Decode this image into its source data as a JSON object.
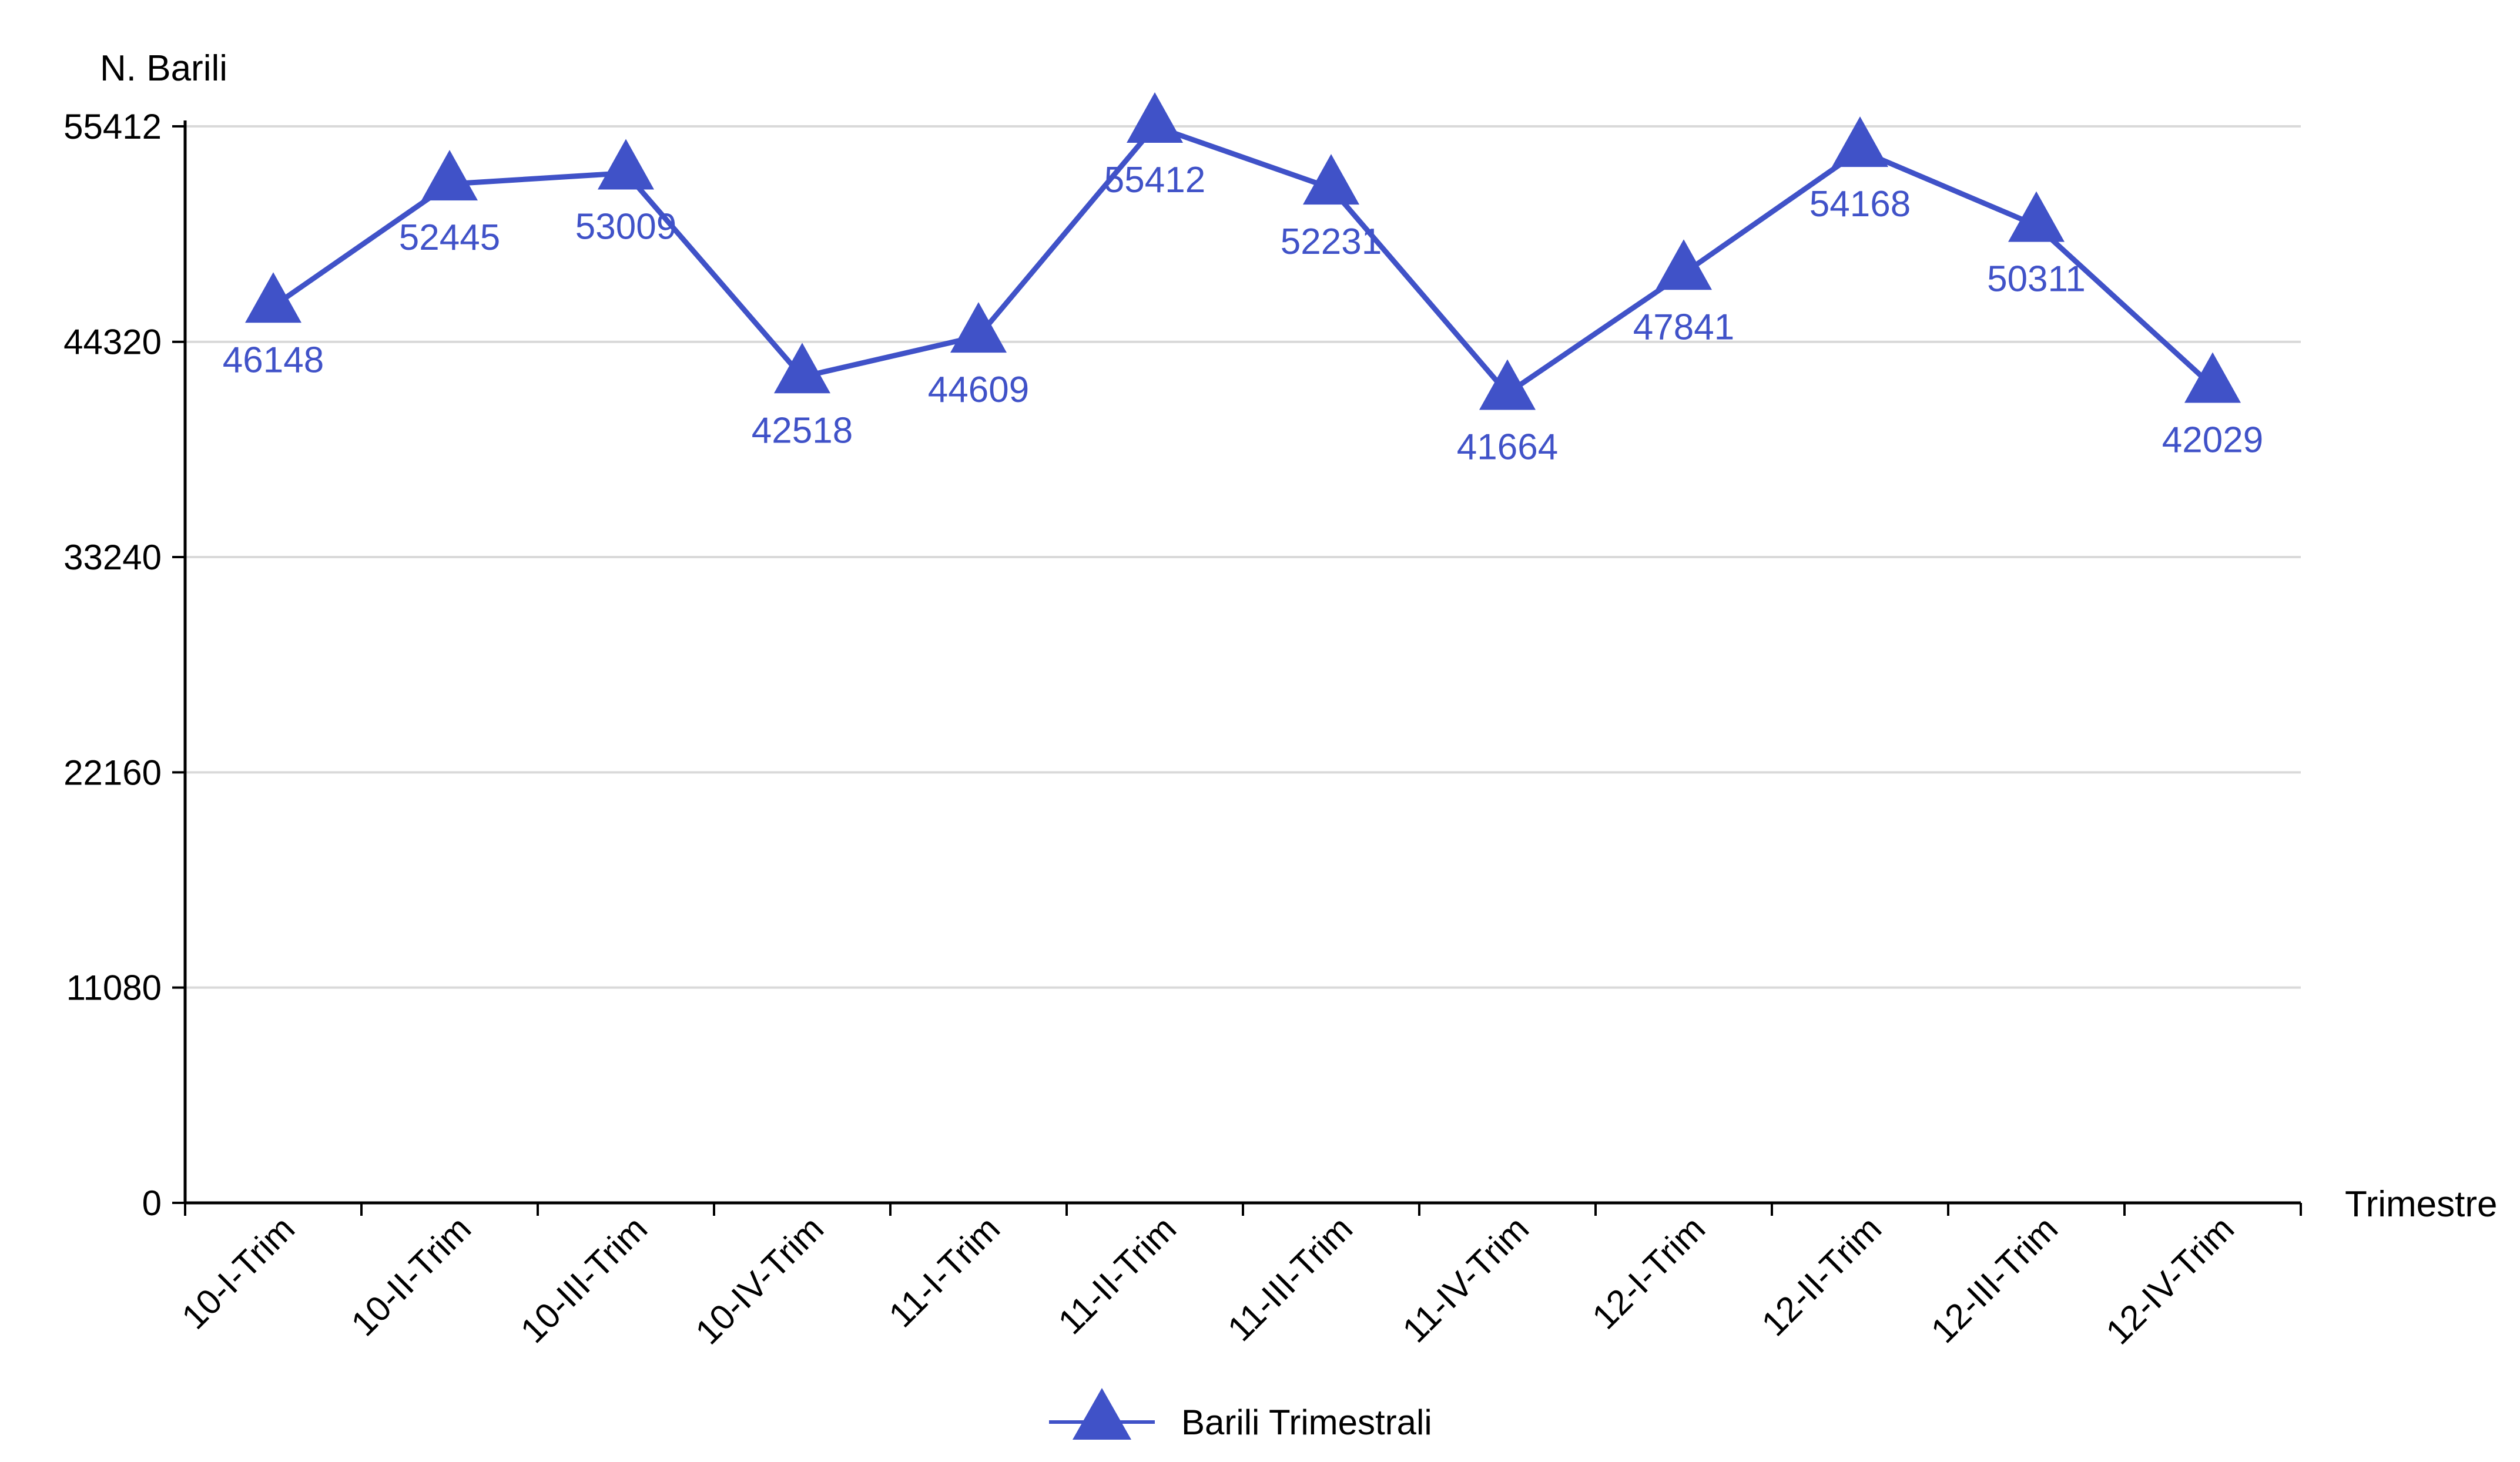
{
  "chart_data": {
    "type": "line",
    "categories": [
      "10-I-Trim",
      "10-II-Trim",
      "10-III-Trim",
      "10-IV-Trim",
      "11-I-Trim",
      "11-II-Trim",
      "11-III-Trim",
      "11-IV-Trim",
      "12-I-Trim",
      "12-II-Trim",
      "12-III-Trim",
      "12-IV-Trim"
    ],
    "series": [
      {
        "name": "Barili Trimestrali",
        "values": [
          46148,
          52445,
          53009,
          42518,
          44609,
          55412,
          52231,
          41664,
          47841,
          54168,
          50311,
          42029
        ],
        "labels": [
          "46148",
          "52445",
          "53009",
          "42518",
          "44609",
          "55412",
          "52231",
          "41664",
          "47841",
          "54168",
          "50311",
          "42029"
        ],
        "color": "#4052c8",
        "marker": "triangle"
      }
    ],
    "xlabel": "Trimestre",
    "ylabel": "N. Barili",
    "ylim": [
      0,
      55412
    ],
    "yticks": [
      0,
      11080,
      22160,
      33240,
      44320,
      55412
    ],
    "ytick_labels": [
      "0",
      "11080",
      "22160",
      "33240",
      "44320",
      "55412"
    ],
    "grid": true,
    "legend_position": "bottom-center",
    "colors": {
      "series": "#4052c8",
      "grid": "#d9d9d9",
      "axis": "#000000"
    }
  }
}
